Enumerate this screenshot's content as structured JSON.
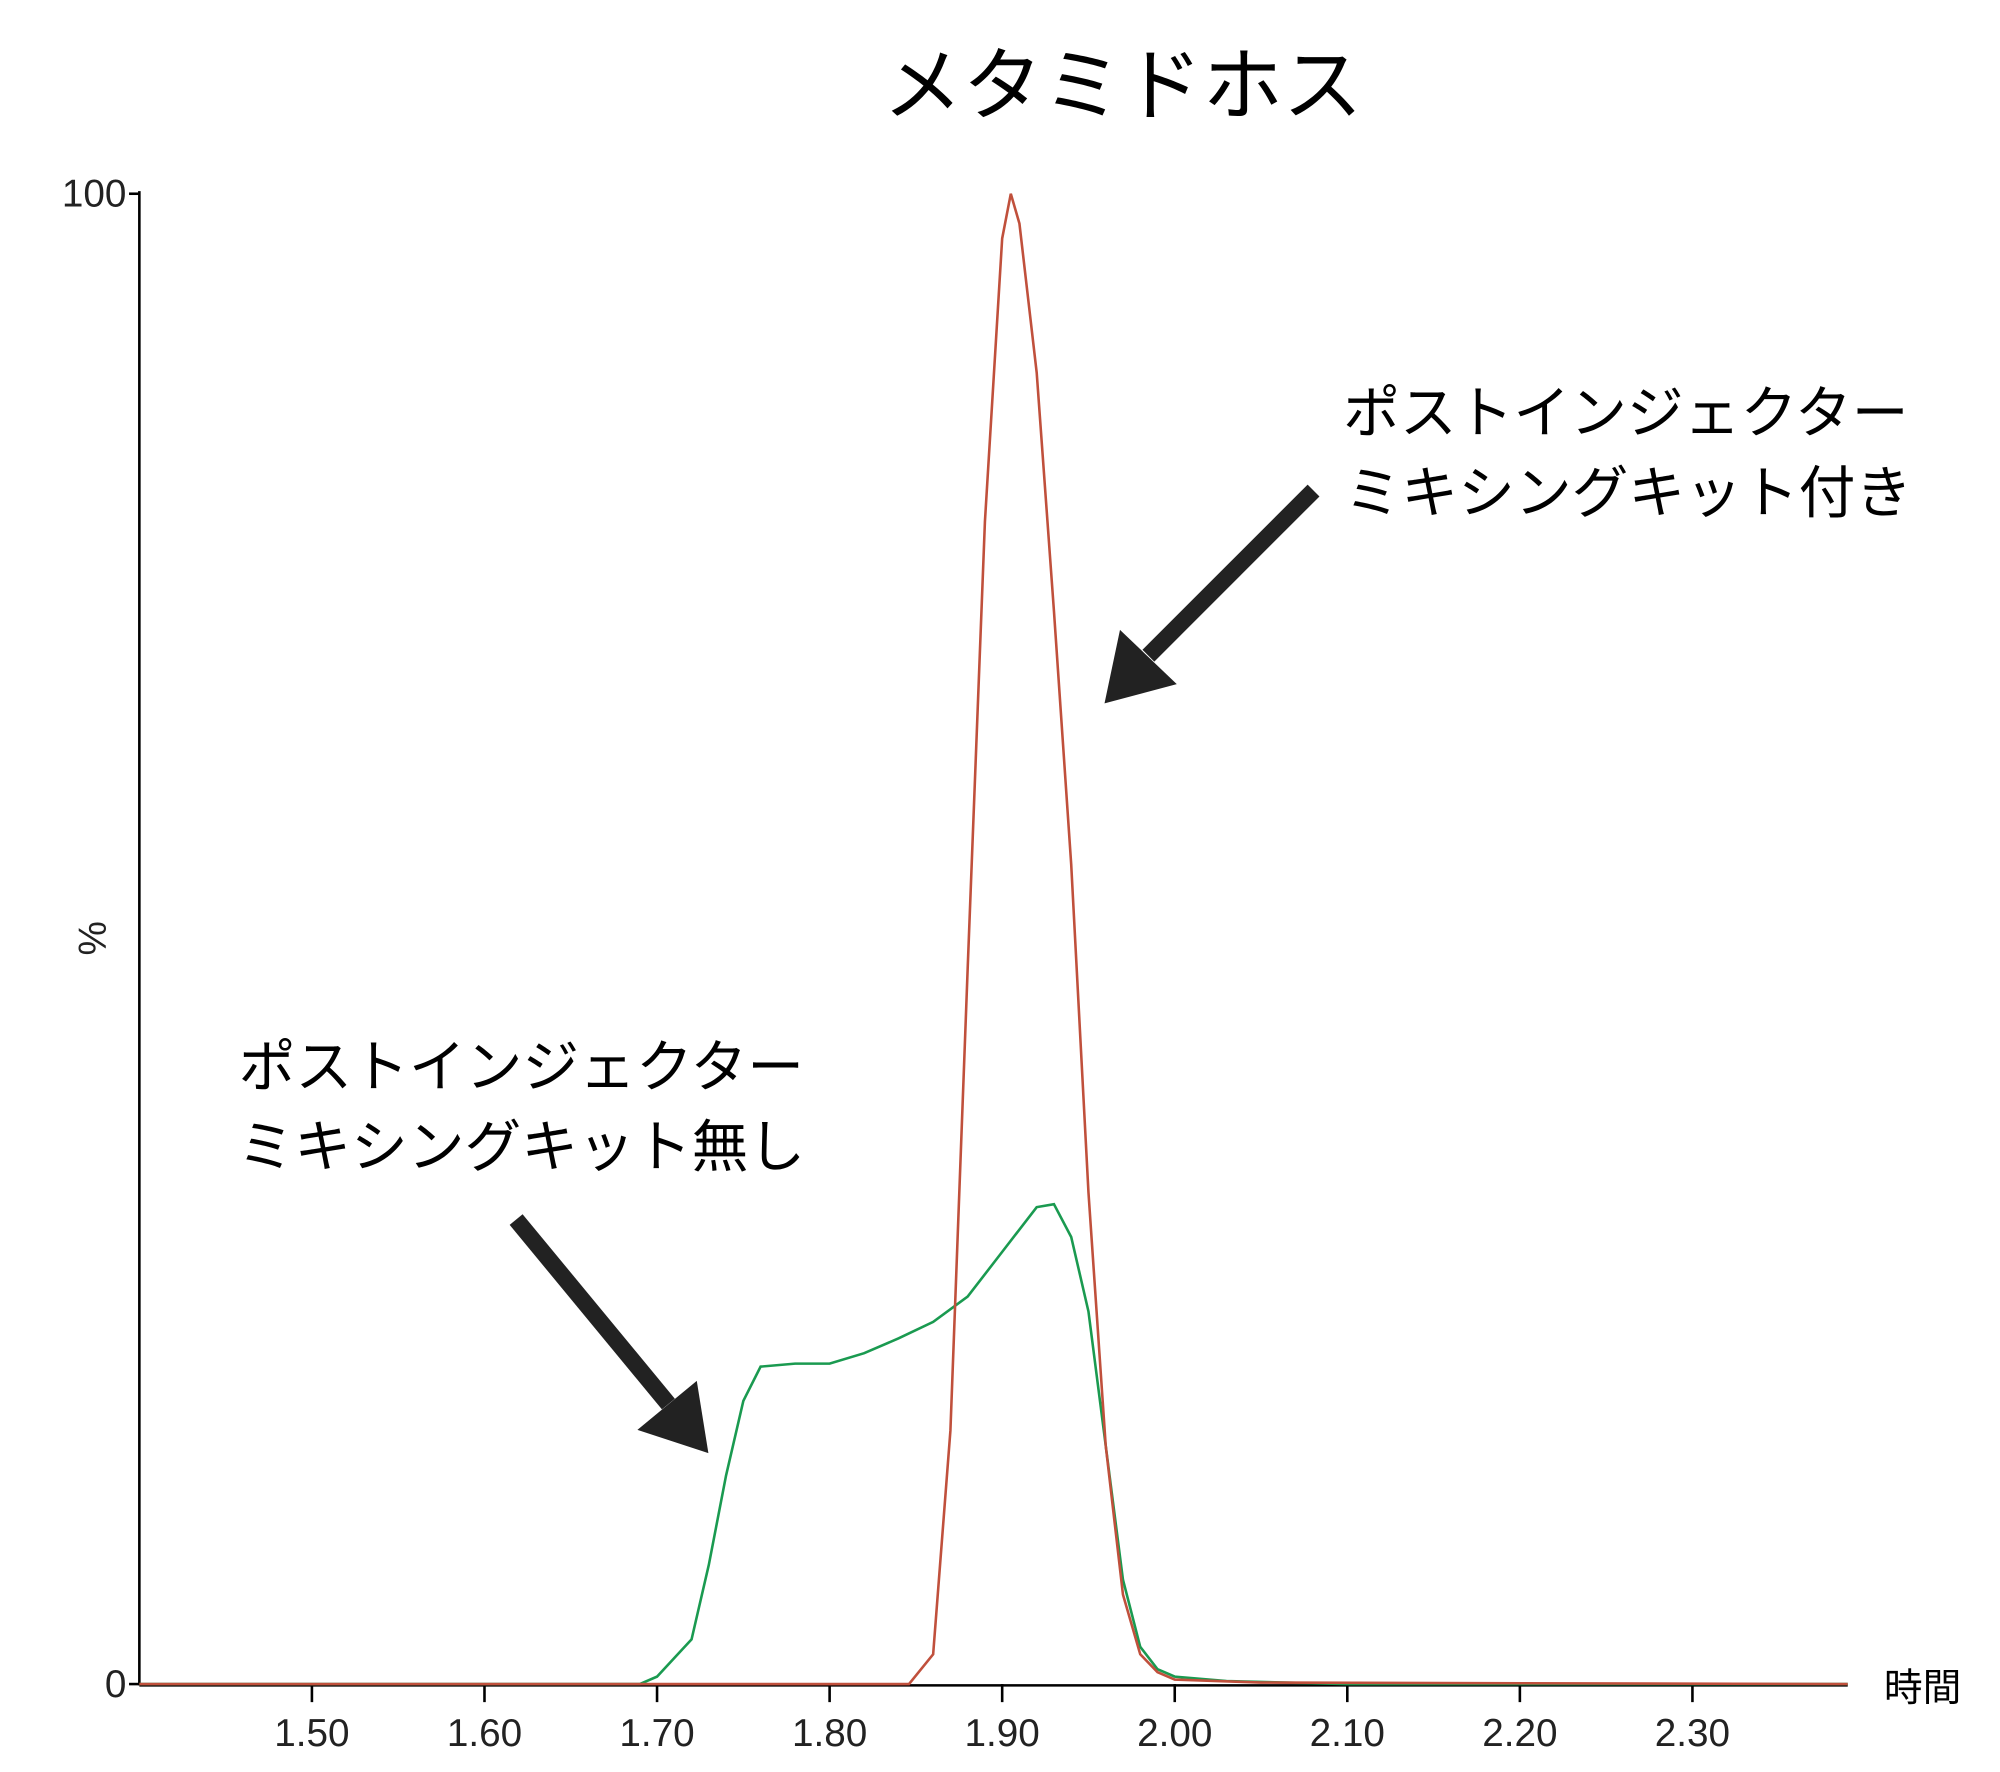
{
  "chart_data": {
    "type": "line",
    "title": "メタミドホス",
    "x_label": "時間",
    "y_label": "%",
    "xlim": [
      1.4,
      2.39
    ],
    "ylim": [
      0,
      100
    ],
    "xticks": [
      {
        "value": 1.5,
        "label": "1.50"
      },
      {
        "value": 1.6,
        "label": "1.60"
      },
      {
        "value": 1.7,
        "label": "1.70"
      },
      {
        "value": 1.8,
        "label": "1.80"
      },
      {
        "value": 1.9,
        "label": "1.90"
      },
      {
        "value": 2.0,
        "label": "2.00"
      },
      {
        "value": 2.1,
        "label": "2.10"
      },
      {
        "value": 2.2,
        "label": "2.20"
      },
      {
        "value": 2.3,
        "label": "2.30"
      }
    ],
    "yticks": [
      0,
      100
    ],
    "series": [
      {
        "name": "ポストインジェクターミキシングキット無し",
        "color": "#1a9a50",
        "x": [
          1.4,
          1.69,
          1.7,
          1.72,
          1.73,
          1.74,
          1.75,
          1.76,
          1.78,
          1.8,
          1.82,
          1.84,
          1.86,
          1.88,
          1.9,
          1.92,
          1.93,
          1.94,
          1.95,
          1.96,
          1.97,
          1.98,
          1.99,
          2.0,
          2.03,
          2.1,
          2.39
        ],
        "values": [
          0,
          0,
          0.5,
          3,
          8,
          14,
          19,
          21.3,
          21.5,
          21.5,
          22.2,
          23.2,
          24.3,
          26,
          29,
          32,
          32.2,
          30,
          25,
          16,
          7,
          2.5,
          1,
          0.5,
          0.2,
          0,
          0
        ]
      },
      {
        "name": "ポストインジェクターミキシングキット付き",
        "color": "#c0503c",
        "x": [
          1.4,
          1.846,
          1.86,
          1.87,
          1.88,
          1.89,
          1.9,
          1.905,
          1.91,
          1.92,
          1.93,
          1.94,
          1.95,
          1.96,
          1.97,
          1.98,
          1.99,
          2.0,
          2.05,
          2.39
        ],
        "values": [
          0,
          0,
          2,
          17,
          48,
          78,
          97,
          100,
          98,
          88,
          72,
          55,
          33,
          16,
          6,
          2,
          0.8,
          0.3,
          0.1,
          0
        ]
      }
    ],
    "annotations": [
      {
        "lines": [
          "ポストインジェクター",
          "ミキシングキット付き"
        ]
      },
      {
        "lines": [
          "ポストインジェクター",
          "ミキシングキット無し"
        ]
      }
    ]
  }
}
